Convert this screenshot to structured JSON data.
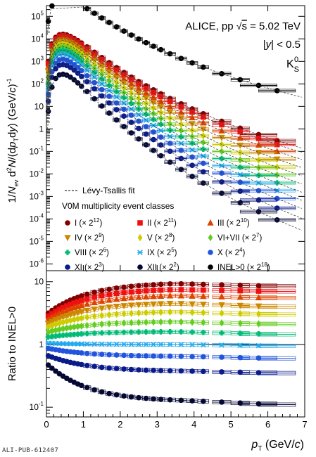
{
  "footer_id": "ALI-PUB-612407",
  "chart_data": [
    {
      "type": "scatter",
      "panel": "spectra",
      "annotations": [
        "ALICE, pp √s = 5.02 TeV",
        "|y| < 0.5",
        "K0S"
      ],
      "ylabel": "1/Nev d2N/(dpT dy) (GeV/c)-1",
      "yscale": "log",
      "ylim": [
        5e-07,
        300000.0
      ],
      "xlim": [
        0,
        7
      ],
      "yticks": [
        "10^-6",
        "10^-5",
        "10^-4",
        "10^-3",
        "10^-2",
        "10^-1",
        "1",
        "10",
        "10^2",
        "10^3",
        "10^4",
        "10^5"
      ],
      "fit_label": "Lévy-Tsallis fit",
      "legend_title": "V0M multiplicity event classes",
      "legend_placement": "bottom-left",
      "pt_bins": [
        0.05,
        0.15,
        0.25,
        0.35,
        0.45,
        0.55,
        0.65,
        0.75,
        0.85,
        0.95,
        1.1,
        1.3,
        1.5,
        1.7,
        1.9,
        2.1,
        2.3,
        2.5,
        2.7,
        2.9,
        3.1,
        3.35,
        3.65,
        3.95,
        4.25,
        4.75,
        5.25,
        5.75,
        6.25
      ],
      "pt_bin_widths": [
        0.1,
        0.1,
        0.1,
        0.1,
        0.1,
        0.1,
        0.1,
        0.1,
        0.1,
        0.1,
        0.2,
        0.2,
        0.2,
        0.2,
        0.2,
        0.2,
        0.2,
        0.2,
        0.2,
        0.2,
        0.2,
        0.3,
        0.3,
        0.3,
        0.3,
        0.5,
        0.5,
        1.0,
        1.0
      ],
      "series": [
        {
          "name": "I (× 2^12)",
          "color": "#800000",
          "marker": "circle",
          "first_value": 1000,
          "last_value": 0.3
        },
        {
          "name": "II (× 2^11)",
          "color": "#ee1111",
          "marker": "square",
          "first_value": 800,
          "last_value": 0.2
        },
        {
          "name": "III (× 2^10)",
          "color": "#dd4400",
          "marker": "triangle-up",
          "first_value": 550,
          "last_value": 0.1
        },
        {
          "name": "IV (× 2^9)",
          "color": "#cc8800",
          "marker": "triangle-down",
          "first_value": 380,
          "last_value": 0.045
        },
        {
          "name": "V (× 2^8)",
          "color": "#cccc00",
          "marker": "diamond",
          "first_value": 250,
          "last_value": 0.02
        },
        {
          "name": "VI+VII (× 2^7)",
          "color": "#66cc22",
          "marker": "diamond",
          "first_value": 160,
          "last_value": 0.009
        },
        {
          "name": "VIII (× 2^6)",
          "color": "#00bb77",
          "marker": "cross",
          "first_value": 100,
          "last_value": 0.004
        },
        {
          "name": "IX (× 2^5)",
          "color": "#22aaee",
          "marker": "star",
          "first_value": 60,
          "last_value": 0.0018
        },
        {
          "name": "X (× 2^4)",
          "color": "#2255dd",
          "marker": "circle",
          "first_value": 33,
          "last_value": 0.0008
        },
        {
          "name": "XI (× 2^3)",
          "color": "#0a1a88",
          "marker": "circle",
          "first_value": 17,
          "last_value": 0.0003
        },
        {
          "name": "XII (× 2^2)",
          "color": "#050833",
          "marker": "circle",
          "first_value": 6,
          "last_value": 9e-05
        },
        {
          "name": "INEL>0 (× 2^18)",
          "color": "#000000",
          "marker": "circle",
          "first_value": 60000,
          "last_value": 50
        }
      ]
    },
    {
      "type": "scatter",
      "panel": "ratio",
      "ylabel": "Ratio to INEL>0",
      "xlabel": "pT (GeV/c)",
      "yscale": "log",
      "ylim": [
        0.07,
        15
      ],
      "xlim": [
        0,
        7
      ],
      "xticks": [
        0,
        1,
        2,
        3,
        4,
        5,
        6,
        7
      ],
      "yticks": [
        "10^-1",
        "1",
        "10"
      ],
      "series": [
        {
          "name": "I",
          "color": "#800000",
          "marker": "circle",
          "low_pt_value": 3.0,
          "peak_value": 9.3,
          "high_pt_value": 8.5
        },
        {
          "name": "II",
          "color": "#ee1111",
          "marker": "square",
          "low_pt_value": 2.7,
          "peak_value": 7.5,
          "high_pt_value": 7.0
        },
        {
          "name": "III",
          "color": "#dd4400",
          "marker": "triangle-up",
          "low_pt_value": 2.4,
          "peak_value": 6.0,
          "high_pt_value": 5.5
        },
        {
          "name": "IV",
          "color": "#cc8800",
          "marker": "triangle-down",
          "low_pt_value": 2.1,
          "peak_value": 4.5,
          "high_pt_value": 4.0
        },
        {
          "name": "V",
          "color": "#cccc00",
          "marker": "diamond",
          "low_pt_value": 1.85,
          "peak_value": 3.3,
          "high_pt_value": 3.0
        },
        {
          "name": "VI+VII",
          "color": "#66cc22",
          "marker": "diamond",
          "low_pt_value": 1.55,
          "peak_value": 2.3,
          "high_pt_value": 2.1
        },
        {
          "name": "VIII",
          "color": "#00bb77",
          "marker": "cross",
          "low_pt_value": 1.3,
          "peak_value": 1.6,
          "high_pt_value": 1.45
        },
        {
          "name": "IX",
          "color": "#22aaee",
          "marker": "star",
          "low_pt_value": 1.05,
          "peak_value": 1.0,
          "high_pt_value": 0.95
        },
        {
          "name": "X",
          "color": "#2255dd",
          "marker": "circle",
          "low_pt_value": 0.88,
          "peak_value": 0.65,
          "high_pt_value": 0.6
        },
        {
          "name": "XI",
          "color": "#0a1a88",
          "marker": "circle",
          "low_pt_value": 0.68,
          "peak_value": 0.38,
          "high_pt_value": 0.35
        },
        {
          "name": "XII",
          "color": "#050833",
          "marker": "circle",
          "low_pt_value": 0.5,
          "peak_value": 0.13,
          "high_pt_value": 0.11
        }
      ]
    }
  ]
}
